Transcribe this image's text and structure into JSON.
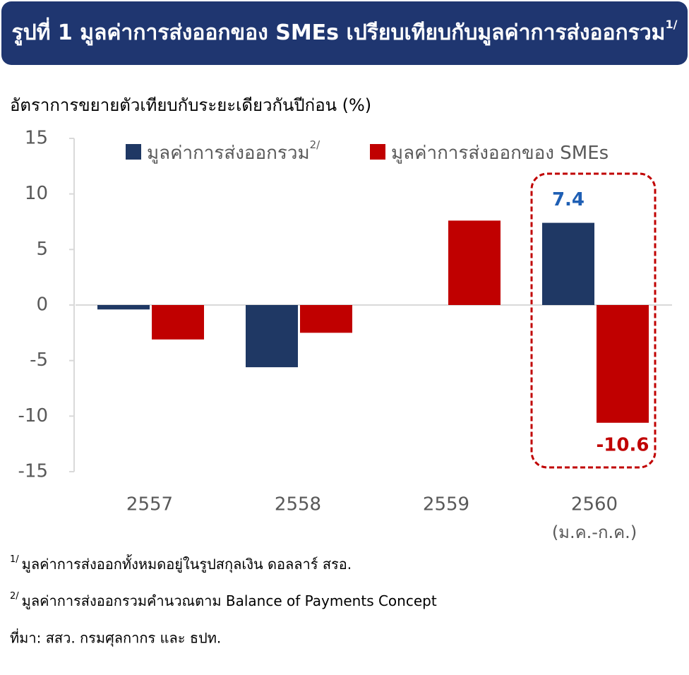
{
  "chart_data": {
    "type": "bar",
    "title": "รูปที่ 1 มูลค่าการส่งออกของ SMEs เปรียบเทียบกับมูลค่าการส่งออกรวม",
    "title_note": "1/",
    "subtitle": "อัตราการขยายตัวเทียบกับระยะเดียวกันปีก่อน (%)",
    "categories": [
      "2557",
      "2558",
      "2559",
      "2560"
    ],
    "category_notes": [
      null,
      null,
      null,
      "(ม.ค.-ก.ค.)"
    ],
    "series": [
      {
        "name": "มูลค่าการส่งออกรวม",
        "name_note": "2/",
        "color": "#1f3864",
        "values": [
          -0.4,
          -5.6,
          null,
          7.4
        ],
        "value_labels": [
          null,
          null,
          null,
          "7.4"
        ]
      },
      {
        "name": "มูลค่าการส่งออกของ SMEs",
        "color": "#c00000",
        "values": [
          -3.1,
          -2.5,
          7.6,
          -10.6
        ],
        "value_labels": [
          null,
          null,
          null,
          "-10.6"
        ]
      }
    ],
    "ylim": [
      -15,
      15
    ],
    "yticks": [
      -15,
      -10,
      -5,
      0,
      5,
      10,
      15
    ],
    "grid": false,
    "footnotes": [
      {
        "mark": "1/",
        "text": "มูลค่าการส่งออกทั้งหมดอยู่ในรูปสกุลเงิน ดอลลาร์ สรอ."
      },
      {
        "mark": "2/",
        "text": "มูลค่าการส่งออกรวมคำนวณตาม Balance of Payments Concept"
      }
    ],
    "source": "ที่มา: สสว. กรมศุลกากร และ ธปท."
  }
}
